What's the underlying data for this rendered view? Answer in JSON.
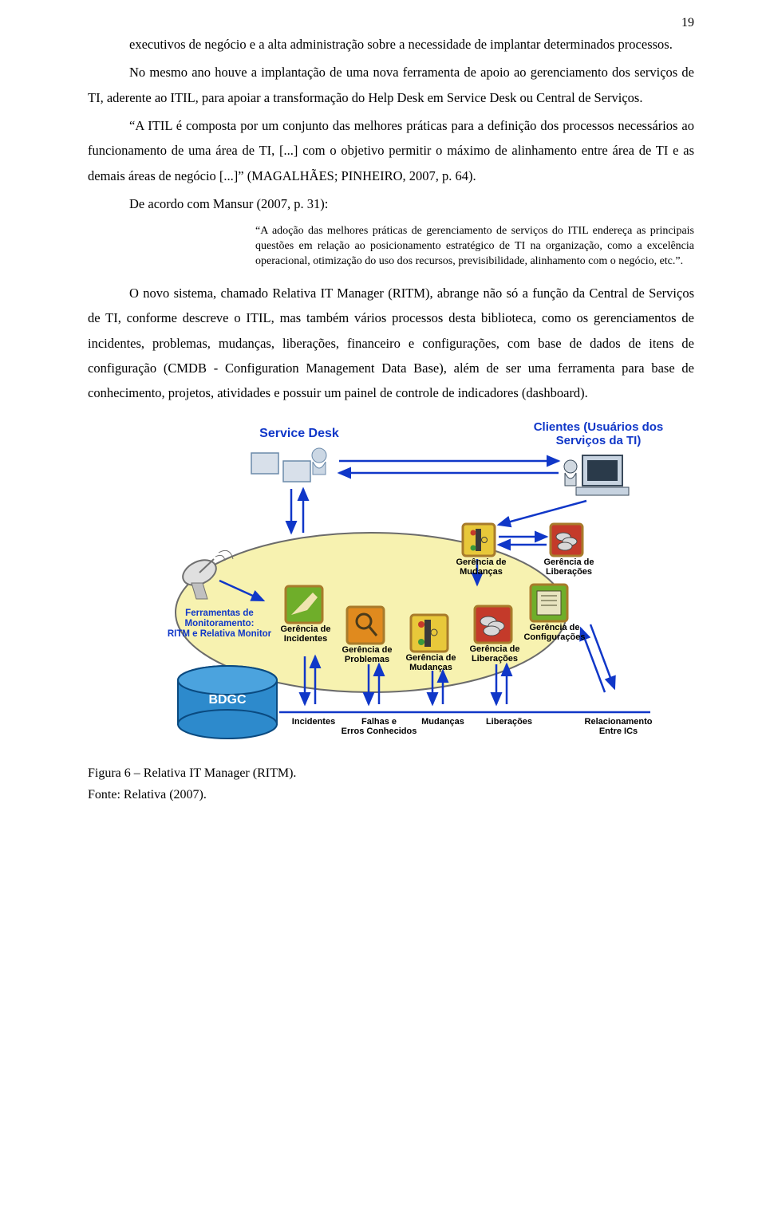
{
  "pageNumber": "19",
  "paragraphs": {
    "p1": "executivos de negócio e a alta administração sobre a necessidade de implantar determinados processos.",
    "p2": "No mesmo ano houve a implantação de uma nova ferramenta de apoio ao gerenciamento dos serviços de TI, aderente ao ITIL, para apoiar a transformação do Help Desk em Service Desk ou Central de Serviços.",
    "p3": "“A ITIL é composta por um conjunto das melhores práticas para a definição dos processos necessários ao funcionamento de uma área de TI, [...] com o objetivo permitir o máximo de alinhamento entre área de TI e as demais áreas de negócio [...]” (MAGALHÃES; PINHEIRO, 2007, p. 64).",
    "p4": "De acordo com Mansur (2007, p. 31):",
    "quote": "“A adoção das melhores práticas de gerenciamento de serviços do ITIL endereça as principais questões em relação ao posicionamento estratégico de TI na organização, como a excelência operacional, otimização do uso dos recursos, previsibilidade, alinhamento com o negócio, etc.”.",
    "p5": "O novo sistema, chamado Relativa IT Manager (RITM), abrange não só a função da Central de Serviços de TI, conforme descreve o ITIL, mas também vários processos desta biblioteca, como os gerenciamentos de incidentes, problemas, mudanças, liberações, financeiro e configurações, com base de dados de itens de configuração (CMDB - Configuration Management Data Base), além de ser uma ferramenta para base de conhecimento, projetos, atividades e possuir um painel de controle de indicadores (dashboard)."
  },
  "caption": {
    "line1": "Figura 6 – Relativa IT Manager (RITM).",
    "line2": "Fonte: Relativa (2007)."
  },
  "diagram": {
    "title_service_desk": "Service Desk",
    "title_clients": "Clientes (Usuários dos Serviços da TI)",
    "label_monitoring": "Ferramentas de\nMonitoramento:\nRITM e Relativa Monitor",
    "label_incidentes": "Gerência de\nIncidentes",
    "label_problemas": "Gerência de\nProblemas",
    "label_mudancas1": "Gerência de\nMudanças",
    "label_mudancas2": "Gerência de\nMudanças",
    "label_liberacoes1": "Gerência de\nLiberações",
    "label_liberacoes2": "Gerência de\nLiberações",
    "label_config": "Gerência de\nConfigurações",
    "label_bdgc": "BDGC",
    "row_incidentes": "Incidentes",
    "row_falhas": "Falhas e\nErros Conhecidos",
    "row_mudancas": "Mudanças",
    "row_liberacoes": "Liberações",
    "row_relacion": "Relacionamento\nEntre ICs",
    "colors": {
      "ellipse_fill": "#f7f2b0",
      "ellipse_stroke": "#6b6b6b",
      "cylinder_fill": "#2d8acc",
      "cylinder_stroke": "#0a4a80",
      "arrow": "#1037c8",
      "icon_green": "#6fae2a",
      "icon_orange": "#e08a1e",
      "icon_yellow": "#e8c83a",
      "icon_red": "#c43a2a",
      "icon_border": "#a87b2b",
      "label_blue": "#1037c8"
    }
  }
}
